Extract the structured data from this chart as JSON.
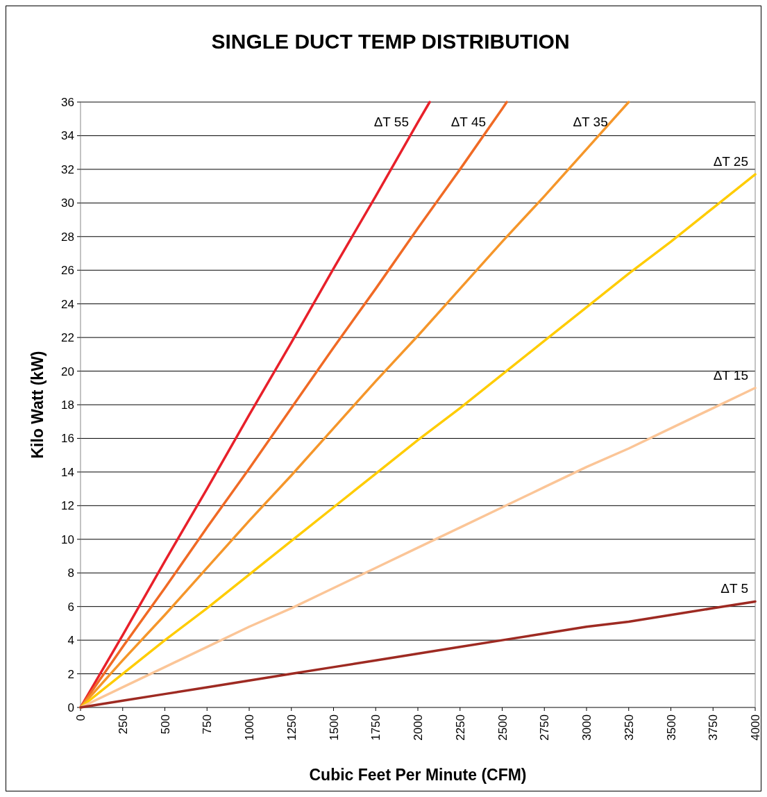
{
  "chart_data": {
    "type": "line",
    "title": "SINGLE DUCT TEMP DISTRIBUTION",
    "xlabel": "Cubic Feet Per Minute (CFM)",
    "ylabel": "Kilo Watt (kW)",
    "xlim": [
      0,
      4000
    ],
    "xticks": [
      0,
      250,
      500,
      750,
      1000,
      1250,
      1500,
      1750,
      2000,
      2250,
      2500,
      2750,
      3000,
      3250,
      3500,
      3750,
      4000
    ],
    "ylim": [
      0,
      36
    ],
    "yticks": [
      0,
      2,
      4,
      6,
      8,
      10,
      12,
      14,
      16,
      18,
      20,
      22,
      24,
      26,
      28,
      30,
      32,
      34,
      36
    ],
    "grid": "y",
    "marker": "none",
    "line_style": "solid",
    "series": [
      {
        "name": "ΔT 55",
        "color": "#e8202a",
        "x": [
          0,
          250,
          500,
          750,
          1000,
          1250,
          1500,
          1750,
          2000,
          2070
        ],
        "values": [
          0,
          4.3,
          8.7,
          13.0,
          17.4,
          21.7,
          26.1,
          30.4,
          34.8,
          36
        ]
      },
      {
        "name": "ΔT 45",
        "color": "#f06a25",
        "x": [
          0,
          250,
          500,
          750,
          1000,
          1250,
          1500,
          1750,
          2000,
          2250,
          2500,
          2527
        ],
        "values": [
          0,
          3.6,
          7.1,
          10.7,
          14.2,
          17.8,
          21.4,
          24.9,
          28.5,
          32.0,
          35.6,
          36
        ]
      },
      {
        "name": "ΔT 35",
        "color": "#f5962a",
        "x": [
          0,
          250,
          500,
          750,
          1000,
          1250,
          1500,
          1750,
          2000,
          2250,
          2500,
          2750,
          3000,
          3250
        ],
        "values": [
          0,
          2.8,
          5.5,
          8.3,
          11.1,
          13.8,
          16.6,
          19.4,
          22.1,
          24.9,
          27.7,
          30.4,
          33.2,
          36
        ]
      },
      {
        "name": "ΔT 25",
        "color": "#ffcc00",
        "x": [
          0,
          250,
          500,
          750,
          1000,
          1250,
          1500,
          1750,
          2000,
          2250,
          2500,
          2750,
          3000,
          3250,
          3500,
          3750,
          4000
        ],
        "values": [
          0,
          2.0,
          4.0,
          5.9,
          7.9,
          9.9,
          11.9,
          13.9,
          15.9,
          17.8,
          19.8,
          21.8,
          23.8,
          25.8,
          27.7,
          29.7,
          31.7
        ]
      },
      {
        "name": "ΔT 15",
        "color": "#fbc597",
        "x": [
          0,
          250,
          500,
          750,
          1000,
          1250,
          1500,
          1750,
          2000,
          2250,
          2500,
          2750,
          3000,
          3250,
          3500,
          3750,
          4000
        ],
        "values": [
          0,
          1.2,
          2.4,
          3.6,
          4.8,
          5.9,
          7.1,
          8.3,
          9.5,
          10.7,
          11.9,
          13.1,
          14.3,
          15.4,
          16.6,
          17.8,
          19.0
        ]
      },
      {
        "name": "ΔT 5",
        "color": "#9e2a22",
        "x": [
          0,
          250,
          500,
          750,
          1000,
          1250,
          1500,
          1750,
          2000,
          2250,
          2500,
          2750,
          3000,
          3250,
          3500,
          3750,
          4000
        ],
        "values": [
          0,
          0.4,
          0.8,
          1.2,
          1.6,
          2.0,
          2.4,
          2.8,
          3.2,
          3.6,
          4.0,
          4.4,
          4.8,
          5.1,
          5.5,
          5.9,
          6.3
        ]
      }
    ]
  }
}
